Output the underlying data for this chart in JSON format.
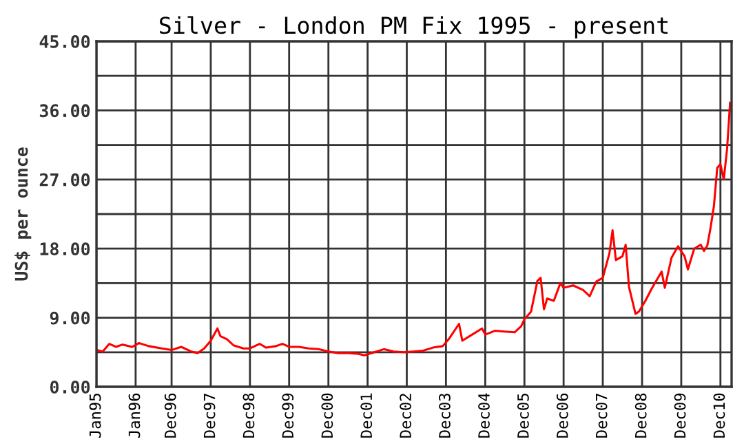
{
  "chart_data": {
    "type": "line",
    "title": "Silver - London PM Fix 1995 - present",
    "ylabel": "US$ per ounce",
    "x": [
      "1995-01",
      "1995-03",
      "1995-05",
      "1995-07",
      "1995-09",
      "1995-12",
      "1996-02",
      "1996-05",
      "1996-09",
      "1996-12",
      "1997-03",
      "1997-06",
      "1997-08",
      "1997-10",
      "1997-12",
      "1998-02",
      "1998-03",
      "1998-05",
      "1998-07",
      "1998-10",
      "1998-12",
      "1999-03",
      "1999-05",
      "1999-08",
      "1999-10",
      "1999-12",
      "2000-03",
      "2000-06",
      "2000-09",
      "2000-12",
      "2001-03",
      "2001-06",
      "2001-09",
      "2001-11",
      "2002-02",
      "2002-05",
      "2002-08",
      "2002-11",
      "2003-02",
      "2003-05",
      "2003-08",
      "2003-11",
      "2004-01",
      "2004-04",
      "2004-05",
      "2004-08",
      "2004-11",
      "2004-12",
      "2005-03",
      "2005-06",
      "2005-09",
      "2005-11",
      "2005-12",
      "2006-02",
      "2006-04",
      "2006-05",
      "2006-06",
      "2006-07",
      "2006-09",
      "2006-11",
      "2006-12",
      "2007-03",
      "2007-06",
      "2007-08",
      "2007-10",
      "2007-12",
      "2008-02",
      "2008-03",
      "2008-04",
      "2008-06",
      "2008-07",
      "2008-08",
      "2008-10",
      "2008-11",
      "2009-01",
      "2009-03",
      "2009-06",
      "2009-07",
      "2009-09",
      "2009-11",
      "2010-01",
      "2010-02",
      "2010-04",
      "2010-06",
      "2010-07",
      "2010-08",
      "2010-09",
      "2010-10",
      "2010-11",
      "2010-12",
      "2011-01",
      "2011-02",
      "2011-03"
    ],
    "series": [
      {
        "color": "#ff0000",
        "values": [
          4.8,
          4.6,
          5.6,
          5.2,
          5.5,
          5.2,
          5.7,
          5.3,
          5.0,
          4.8,
          5.2,
          4.6,
          4.4,
          5.0,
          6.0,
          7.6,
          6.6,
          6.2,
          5.4,
          5.0,
          5.0,
          5.6,
          5.1,
          5.3,
          5.6,
          5.2,
          5.2,
          5.0,
          4.9,
          4.6,
          4.4,
          4.4,
          4.3,
          4.1,
          4.5,
          4.9,
          4.6,
          4.5,
          4.6,
          4.7,
          5.1,
          5.3,
          6.3,
          8.2,
          6.0,
          6.8,
          7.6,
          6.8,
          7.3,
          7.2,
          7.1,
          7.9,
          8.8,
          9.8,
          13.8,
          14.2,
          10.1,
          11.5,
          11.2,
          13.5,
          12.9,
          13.2,
          12.6,
          11.8,
          13.7,
          14.2,
          17.4,
          20.4,
          16.5,
          17.0,
          18.5,
          13.0,
          9.5,
          9.8,
          11.2,
          12.8,
          15.0,
          12.9,
          16.8,
          18.3,
          17.0,
          15.3,
          18.0,
          18.5,
          17.7,
          18.4,
          20.8,
          23.5,
          28.5,
          29.0,
          27.0,
          31.0,
          37.0
        ]
      }
    ],
    "xlim": [
      "1995-01-01",
      "2011-03-15"
    ],
    "xticks": [
      {
        "value": "1995-01",
        "label": "Jan95"
      },
      {
        "value": "1996-01",
        "label": "Jan96"
      },
      {
        "value": "1996-12",
        "label": "Dec96"
      },
      {
        "value": "1997-12",
        "label": "Dec97"
      },
      {
        "value": "1998-12",
        "label": "Dec98"
      },
      {
        "value": "1999-12",
        "label": "Dec99"
      },
      {
        "value": "2000-12",
        "label": "Dec00"
      },
      {
        "value": "2001-12",
        "label": "Dec01"
      },
      {
        "value": "2002-12",
        "label": "Dec02"
      },
      {
        "value": "2003-12",
        "label": "Dec03"
      },
      {
        "value": "2004-12",
        "label": "Dec04"
      },
      {
        "value": "2005-12",
        "label": "Dec05"
      },
      {
        "value": "2006-12",
        "label": "Dec06"
      },
      {
        "value": "2007-12",
        "label": "Dec07"
      },
      {
        "value": "2008-12",
        "label": "Dec08"
      },
      {
        "value": "2009-12",
        "label": "Dec09"
      },
      {
        "value": "2010-12",
        "label": "Dec10"
      }
    ],
    "ylim": [
      0,
      45
    ],
    "yticks": [
      {
        "value": 0,
        "label": "0.00"
      },
      {
        "value": 4.5,
        "label": null
      },
      {
        "value": 9,
        "label": "9.00"
      },
      {
        "value": 13.5,
        "label": null
      },
      {
        "value": 18,
        "label": "18.00"
      },
      {
        "value": 22.5,
        "label": null
      },
      {
        "value": 27,
        "label": "27.00"
      },
      {
        "value": 31.5,
        "label": null
      },
      {
        "value": 36,
        "label": "36.00"
      },
      {
        "value": 40.5,
        "label": null
      },
      {
        "value": 45,
        "label": "45.00"
      }
    ],
    "grid": true,
    "marker": "none",
    "line_style": "solid"
  }
}
